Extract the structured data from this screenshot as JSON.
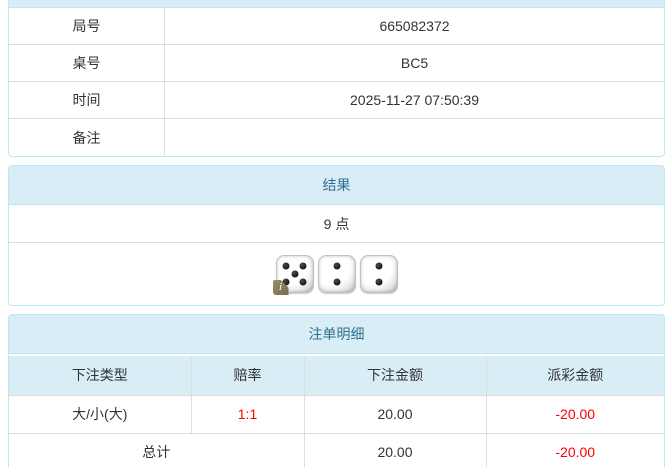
{
  "colors": {
    "panel_border": "#bce8f1",
    "heading_bg": "#d9edf7",
    "heading_text": "#31708f",
    "body_text": "#333333",
    "negative": "#ff0000",
    "table_border": "#dddddd"
  },
  "game_info": {
    "rows": [
      {
        "label": "局号",
        "value": "665082372"
      },
      {
        "label": "桌号",
        "value": "BC5"
      },
      {
        "label": "时间",
        "value": "2025-11-27 07:50:39"
      },
      {
        "label": "备注",
        "value": ""
      }
    ]
  },
  "result": {
    "heading": "结果",
    "points": "9 点",
    "dice": [
      5,
      2,
      2
    ],
    "info_badge": "i"
  },
  "bet_details": {
    "heading": "注单明细",
    "columns": [
      "下注类型",
      "赔率",
      "下注金额",
      "派彩金额"
    ],
    "rows": [
      {
        "bet_type": "大/小(大)",
        "odds": "1:1",
        "bet_amount": "20.00",
        "payout": "-20.00"
      }
    ],
    "total": {
      "label": "总计",
      "bet_amount": "20.00",
      "payout": "-20.00"
    }
  }
}
